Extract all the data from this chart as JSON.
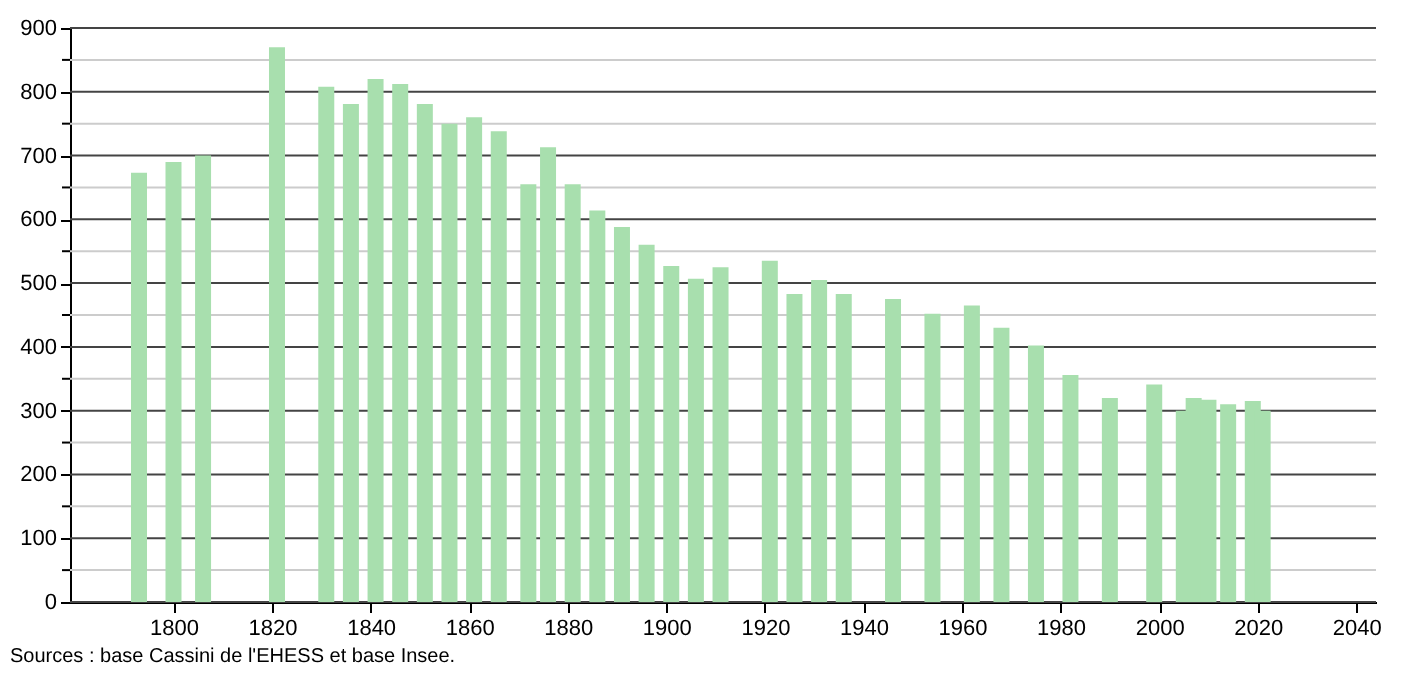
{
  "chart_data": {
    "type": "bar",
    "color": "#a8dfae",
    "x": [
      1793,
      1800,
      1806,
      1821,
      1831,
      1836,
      1841,
      1846,
      1851,
      1856,
      1861,
      1866,
      1872,
      1876,
      1881,
      1886,
      1891,
      1896,
      1901,
      1906,
      1911,
      1921,
      1926,
      1931,
      1936,
      1946,
      1954,
      1962,
      1968,
      1975,
      1982,
      1990,
      1999,
      2005,
      2007,
      2010,
      2014,
      2019,
      2021
    ],
    "values": [
      673,
      690,
      700,
      870,
      808,
      781,
      820,
      812,
      781,
      750,
      760,
      738,
      655,
      713,
      655,
      614,
      588,
      560,
      527,
      507,
      525,
      535,
      483,
      505,
      483,
      475,
      452,
      465,
      430,
      402,
      356,
      320,
      341,
      300,
      320,
      317,
      310,
      315,
      300
    ],
    "xlim": [
      1779,
      2044
    ],
    "xticks": [
      1800,
      1820,
      1840,
      1860,
      1880,
      1900,
      1920,
      1940,
      1960,
      1980,
      2000,
      2020,
      2040
    ],
    "ylim": [
      0,
      900
    ],
    "yticks": [
      0,
      {
        "value": 50,
        "label": null
      },
      100,
      {
        "value": 150,
        "label": null
      },
      200,
      {
        "value": 250,
        "label": null
      },
      300,
      {
        "value": 350,
        "label": null
      },
      400,
      {
        "value": 450,
        "label": null
      },
      500,
      {
        "value": 550,
        "label": null
      },
      600,
      {
        "value": 650,
        "label": null
      },
      700,
      {
        "value": 750,
        "label": null
      },
      800,
      {
        "value": 850,
        "label": null
      },
      900
    ],
    "grid": "y",
    "annotations": [
      "Sources : base Cassini de l'EHESS et base Insee."
    ]
  }
}
